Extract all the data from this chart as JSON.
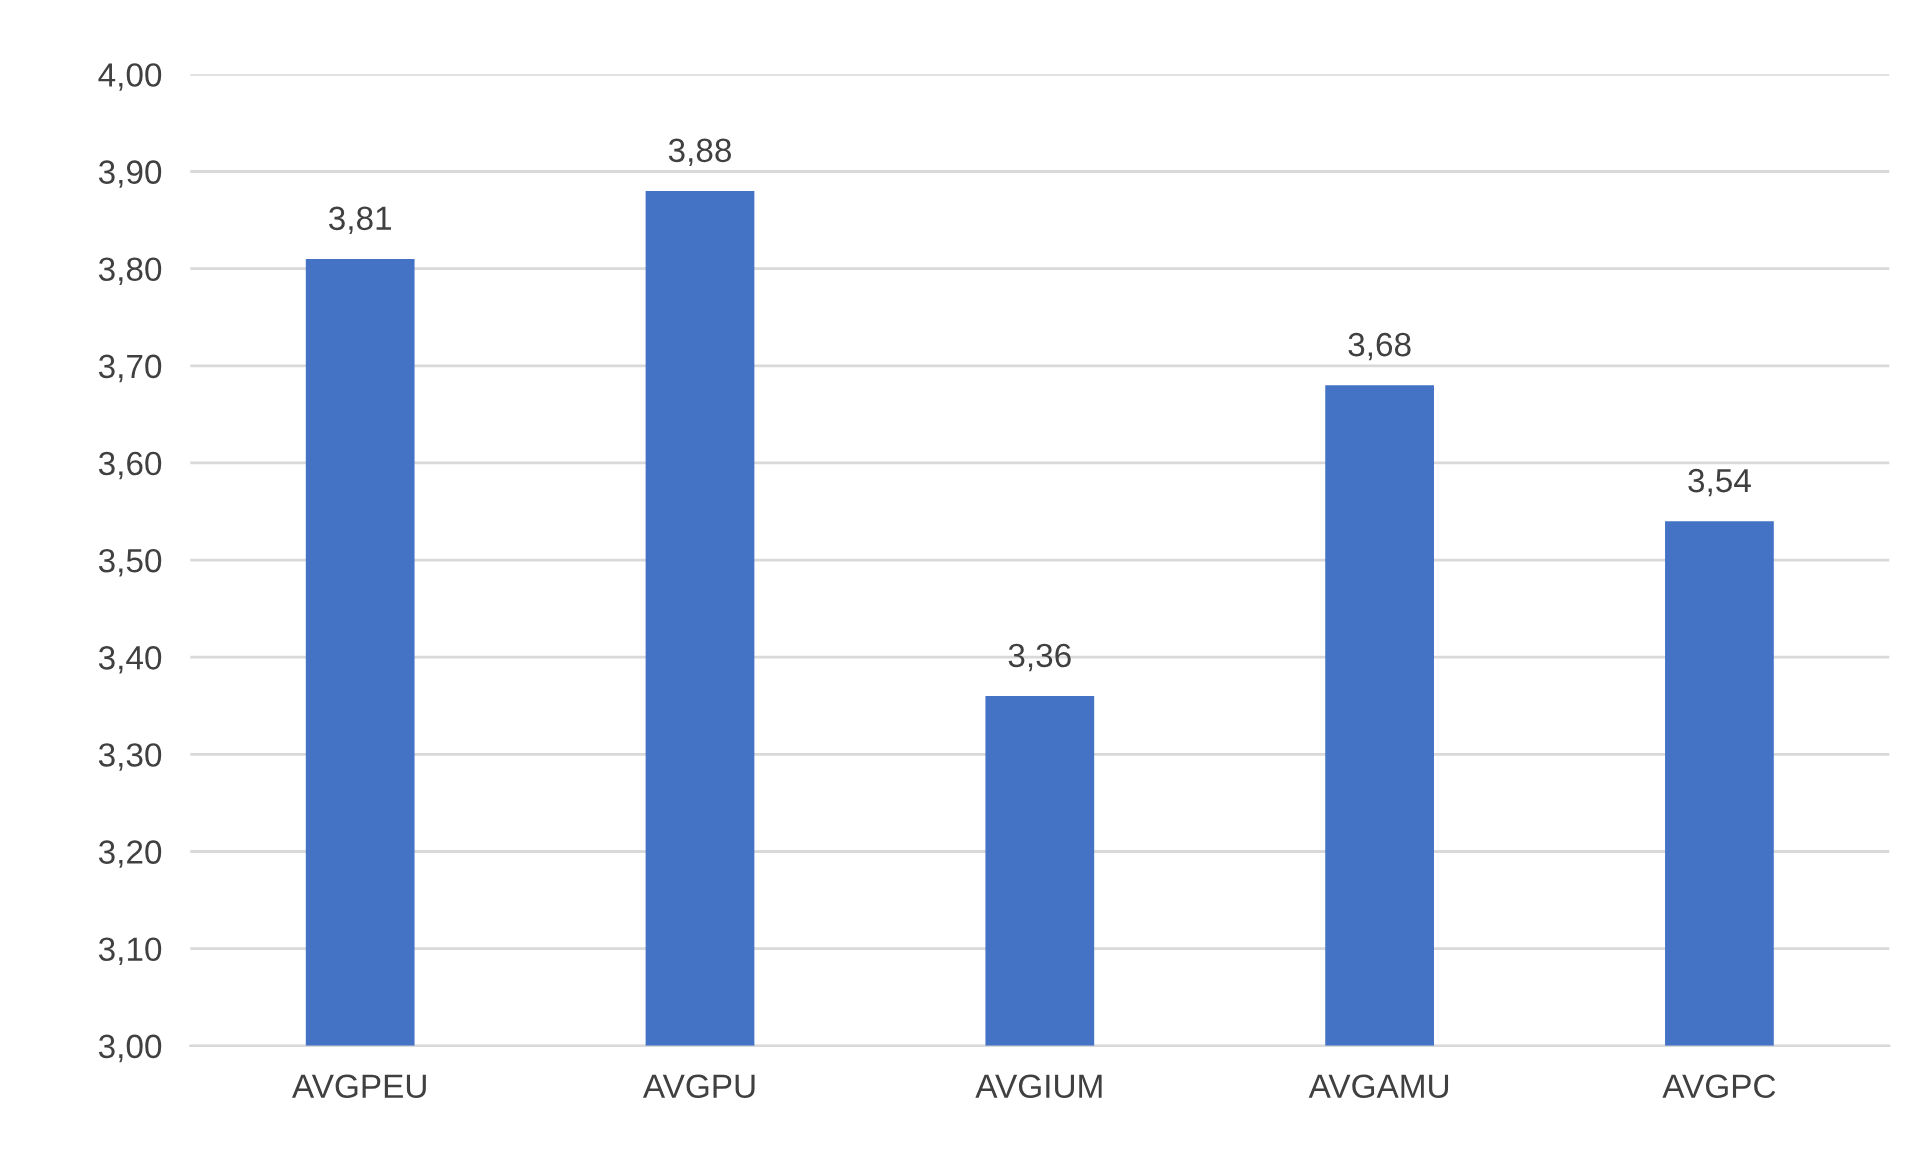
{
  "chart_data": {
    "type": "bar",
    "categories": [
      "AVGPEU",
      "AVGPU",
      "AVGIUM",
      "AVGAMU",
      "AVGPC"
    ],
    "values": [
      3.81,
      3.88,
      3.36,
      3.68,
      3.54
    ],
    "value_labels": [
      "3,81",
      "3,88",
      "3,36",
      "3,68",
      "3,54"
    ],
    "color": "#4472c4",
    "ylim": [
      3.0,
      4.0
    ],
    "yticks": [
      {
        "value": 3.0,
        "label": "3,00"
      },
      {
        "value": 3.1,
        "label": "3,10"
      },
      {
        "value": 3.2,
        "label": "3,20"
      },
      {
        "value": 3.3,
        "label": "3,30"
      },
      {
        "value": 3.4,
        "label": "3,40"
      },
      {
        "value": 3.5,
        "label": "3,50"
      },
      {
        "value": 3.6,
        "label": "3,60"
      },
      {
        "value": 3.7,
        "label": "3,70"
      },
      {
        "value": 3.8,
        "label": "3,80"
      },
      {
        "value": 3.9,
        "label": "3,90"
      },
      {
        "value": 4.0,
        "label": "4,00"
      }
    ],
    "grid": "y"
  }
}
